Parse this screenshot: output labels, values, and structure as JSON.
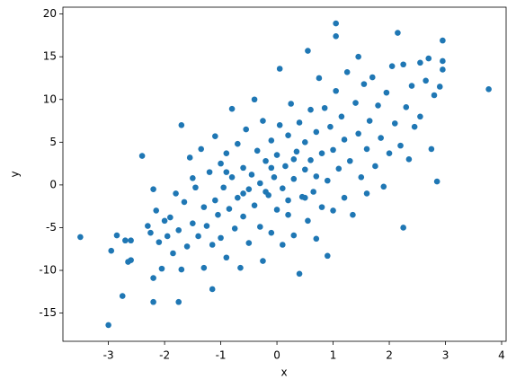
{
  "chart_data": {
    "type": "scatter",
    "xlabel": "x",
    "ylabel": "y",
    "color": "#1f77b4",
    "grid": false,
    "xlim": [
      -3.81,
      4.08
    ],
    "ylim": [
      -18.3,
      20.8
    ],
    "xticks": [
      -3,
      -2,
      -1,
      0,
      1,
      2,
      3,
      4
    ],
    "yticks": [
      -15,
      -10,
      -5,
      0,
      5,
      10,
      15,
      20
    ],
    "x": [
      -3.5,
      -3.0,
      -2.95,
      -2.85,
      -2.75,
      -2.7,
      -2.65,
      -2.6,
      -2.6,
      -2.4,
      -2.3,
      -2.25,
      -2.2,
      -2.2,
      -2.2,
      -2.15,
      -2.1,
      -2.05,
      -2.0,
      -1.95,
      -1.9,
      -1.85,
      -1.8,
      -1.75,
      -1.75,
      -1.7,
      -1.7,
      -1.65,
      -1.6,
      -1.55,
      -1.5,
      -1.5,
      -1.45,
      -1.4,
      -1.35,
      -1.3,
      -1.3,
      -1.25,
      -1.2,
      -1.15,
      -1.15,
      -1.1,
      -1.1,
      -1.05,
      -1.0,
      -1.0,
      -0.95,
      -0.9,
      -0.9,
      -0.85,
      -0.8,
      -0.8,
      -0.75,
      -0.7,
      -0.7,
      -0.65,
      -0.6,
      -0.6,
      -0.55,
      -0.5,
      -0.5,
      -0.45,
      -0.4,
      -0.4,
      -0.35,
      -0.3,
      -0.3,
      -0.25,
      -0.25,
      -0.2,
      -0.15,
      -0.1,
      -0.1,
      -0.05,
      0.0,
      0.0,
      0.05,
      0.05,
      0.1,
      0.1,
      0.15,
      0.2,
      0.2,
      0.25,
      0.3,
      0.3,
      0.35,
      0.4,
      0.4,
      0.45,
      0.5,
      0.5,
      0.55,
      0.55,
      0.6,
      0.6,
      0.65,
      0.7,
      0.7,
      0.75,
      0.8,
      0.8,
      0.85,
      0.9,
      0.9,
      0.95,
      1.0,
      1.0,
      1.05,
      1.05,
      1.05,
      1.1,
      1.15,
      1.2,
      1.2,
      1.25,
      1.3,
      1.35,
      1.4,
      1.45,
      1.45,
      1.5,
      1.55,
      1.6,
      1.6,
      1.65,
      1.7,
      1.75,
      1.8,
      1.85,
      1.9,
      1.95,
      2.0,
      2.05,
      2.1,
      2.15,
      2.2,
      2.25,
      2.25,
      2.3,
      2.35,
      2.4,
      2.45,
      2.55,
      2.55,
      2.65,
      2.7,
      2.75,
      2.8,
      2.85,
      2.9,
      2.95,
      2.95,
      2.95,
      3.77,
      -0.2,
      0.3,
      -0.6,
      0.5,
      -0.1,
      0.7,
      -0.9,
      0.2
    ],
    "y": [
      -6.1,
      -16.4,
      -7.7,
      -5.9,
      -13.0,
      -6.5,
      -9.0,
      -6.5,
      -8.8,
      3.4,
      -4.8,
      -5.6,
      -13.7,
      -10.9,
      -0.5,
      -3.0,
      -6.7,
      -9.8,
      -4.2,
      -6.0,
      -3.8,
      -8.0,
      -1.0,
      -13.7,
      -5.3,
      7.0,
      -9.9,
      -2.0,
      -7.2,
      3.2,
      -4.5,
      0.8,
      -0.3,
      -6.0,
      4.2,
      -2.6,
      -9.7,
      -4.8,
      1.5,
      -12.2,
      -7.0,
      5.7,
      -1.8,
      -3.5,
      2.5,
      -6.2,
      -0.3,
      -8.5,
      3.7,
      -2.8,
      8.9,
      0.9,
      -5.1,
      -1.5,
      4.8,
      -9.7,
      2.0,
      -3.7,
      6.5,
      -0.5,
      -6.8,
      1.2,
      10.0,
      -2.4,
      4.0,
      -4.9,
      0.2,
      7.5,
      -8.9,
      2.8,
      -1.2,
      5.2,
      -5.6,
      0.9,
      3.5,
      -2.9,
      13.6,
      7.0,
      -0.4,
      -7.0,
      2.2,
      5.8,
      -3.5,
      9.5,
      0.7,
      -5.9,
      3.9,
      -10.4,
      7.3,
      -1.4,
      5.0,
      1.8,
      15.7,
      -4.2,
      8.8,
      2.9,
      -0.8,
      6.2,
      -6.3,
      12.5,
      3.7,
      -2.6,
      9.0,
      0.5,
      -8.3,
      6.8,
      4.1,
      -3.0,
      18.9,
      17.4,
      11.0,
      1.9,
      8.0,
      -1.5,
      5.3,
      13.2,
      2.8,
      -3.5,
      9.6,
      6.0,
      15.0,
      0.9,
      11.8,
      4.2,
      -1.0,
      7.5,
      12.6,
      2.2,
      9.3,
      5.5,
      -0.2,
      10.8,
      3.7,
      13.9,
      7.2,
      17.8,
      4.6,
      -5.0,
      14.1,
      9.1,
      3.0,
      11.6,
      6.8,
      14.3,
      8.0,
      12.2,
      14.8,
      4.2,
      10.5,
      0.4,
      11.5,
      16.9,
      14.5,
      13.5,
      11.2,
      -0.8,
      3.0,
      -1.0,
      -1.5,
      2.0,
      1.0,
      1.5,
      -1.8
    ]
  }
}
